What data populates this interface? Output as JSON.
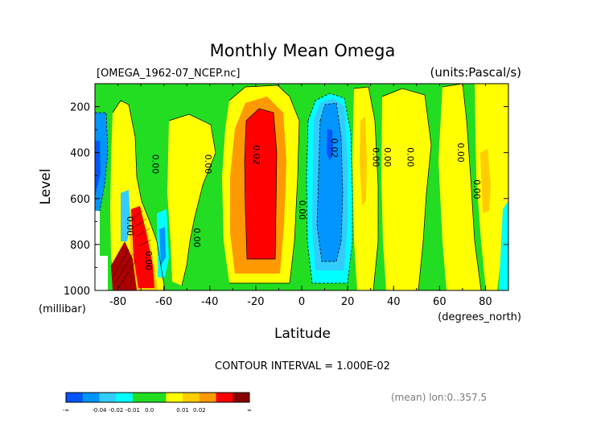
{
  "chart_data": {
    "type": "heatmap",
    "title": "Monthly Mean Omega",
    "file_label": "[OMEGA_1962-07_NCEP.nc]",
    "units_label": "(units:Pascal/s)",
    "xlabel": "Latitude",
    "xunit": "(degrees_north)",
    "ylabel": "Level",
    "yunit": "(millibar)",
    "xlim": [
      -90,
      90
    ],
    "ylim": [
      1000,
      100
    ],
    "x_ticks": [
      "-80",
      "-60",
      "-40",
      "-20",
      "0",
      "20",
      "40",
      "60",
      "80"
    ],
    "y_ticks": [
      "200",
      "400",
      "600",
      "800",
      "1000"
    ],
    "contour_interval_text": "CONTOUR INTERVAL = 1.000E-02",
    "footer_note": "(mean) lon:0..357.5",
    "color_scale": {
      "bins": [
        "#0055ff",
        "#0095ff",
        "#33ccff",
        "#00ffff",
        "#22dd22",
        "#22dd22",
        "#ffff00",
        "#ffcc00",
        "#ff9900",
        "#ff0000",
        "#880000"
      ],
      "tick_labels": [
        "-∞",
        "-0.04",
        "-0.02",
        "-0.01",
        "0.0",
        "0.01",
        "0.02",
        "∞"
      ]
    },
    "contour_labels": [
      {
        "lat": -65,
        "lev": 450,
        "text": "0.00"
      },
      {
        "lat": -42,
        "lev": 450,
        "text": "0.00"
      },
      {
        "lat": -21,
        "lev": 410,
        "text": "0.02"
      },
      {
        "lat": 13,
        "lev": 380,
        "text": "0.02"
      },
      {
        "lat": -1,
        "lev": 650,
        "text": "0.00"
      },
      {
        "lat": -47,
        "lev": 770,
        "text": "0.00"
      },
      {
        "lat": -76,
        "lev": 720,
        "text": "0.00"
      },
      {
        "lat": -68,
        "lev": 870,
        "text": "0.00"
      },
      {
        "lat": 31,
        "lev": 420,
        "text": "0.00"
      },
      {
        "lat": 36,
        "lev": 420,
        "text": "0.00"
      },
      {
        "lat": 46,
        "lev": 420,
        "text": "0.00"
      },
      {
        "lat": 68,
        "lev": 400,
        "text": "0.00"
      },
      {
        "lat": 75,
        "lev": 560,
        "text": "0.00"
      }
    ]
  }
}
